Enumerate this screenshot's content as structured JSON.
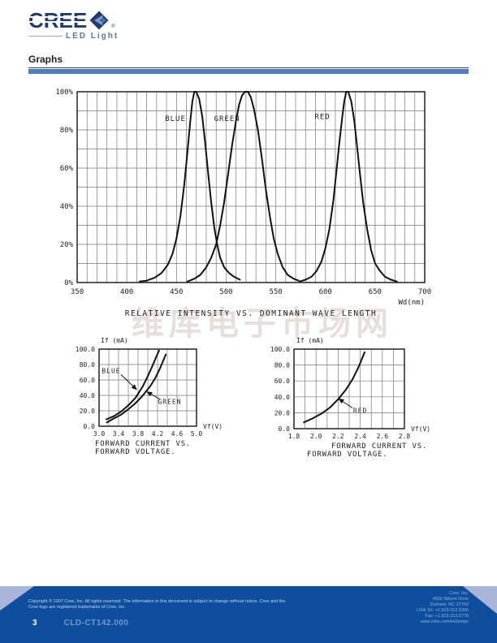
{
  "logo": {
    "brand": "CREE",
    "sub": "LED Light",
    "registered": "®"
  },
  "heading": {
    "title": "Graphs"
  },
  "watermark": {
    "text": "维库电子市场网"
  },
  "colors": {
    "footer_bg": "#0E4E9C",
    "footer_triangle": "#A8B4D8",
    "accent_bar": "#4C7DBE",
    "logo_navy": "#1E3A6E",
    "logo_steel": "#5577A8",
    "doc_number": "#6E9AD4",
    "address_text": "#8FB4E2",
    "copyright_text": "#C5D6EA",
    "curve": "#111111",
    "grid": "#777777"
  },
  "chart_data": [
    {
      "id": "spectral",
      "type": "line",
      "title_lines": [
        "RELATIVE INTENSITY VS. DOMINANT WAVE LENGTH"
      ],
      "xlabel": "Wd(nm)",
      "ylabel": "",
      "xlim": [
        350,
        700
      ],
      "ylim": [
        0,
        100
      ],
      "xgrid": 10,
      "ygrid": 10,
      "grid": true,
      "legend": "inline-labels",
      "xticks": {
        "values": [
          350,
          400,
          450,
          500,
          550,
          600,
          650,
          700
        ],
        "labels": [
          "350",
          "400",
          "450",
          "500",
          "550",
          "600",
          "650",
          "700"
        ]
      },
      "yticks": {
        "values": [
          0,
          20,
          40,
          60,
          80,
          100
        ],
        "labels": [
          "0%",
          "20%",
          "40%",
          "60%",
          "80%",
          "100%"
        ]
      },
      "series": [
        {
          "name": "BLUE",
          "label": {
            "text": "BLUE",
            "x": 449,
            "y": 86
          },
          "points": [
            [
              413,
              0.5
            ],
            [
              420,
              1
            ],
            [
              428,
              2.5
            ],
            [
              435,
              5
            ],
            [
              441,
              9
            ],
            [
              446,
              15
            ],
            [
              450,
              23
            ],
            [
              454,
              35
            ],
            [
              458,
              52
            ],
            [
              461,
              68
            ],
            [
              464,
              85
            ],
            [
              466,
              95
            ],
            [
              468,
              100
            ],
            [
              470,
              100
            ],
            [
              473,
              96
            ],
            [
              476,
              87
            ],
            [
              479,
              73
            ],
            [
              482,
              57
            ],
            [
              485,
              42
            ],
            [
              488,
              29
            ],
            [
              491,
              20
            ],
            [
              494,
              13
            ],
            [
              498,
              8
            ],
            [
              503,
              5
            ],
            [
              508,
              3
            ],
            [
              514,
              1.5
            ]
          ]
        },
        {
          "name": "GREEN",
          "label": {
            "text": "GREEN",
            "x": 501,
            "y": 86
          },
          "points": [
            [
              461,
              0.5
            ],
            [
              468,
              2
            ],
            [
              474,
              4
            ],
            [
              480,
              8
            ],
            [
              485,
              13
            ],
            [
              490,
              20
            ],
            [
              494,
              30
            ],
            [
              498,
              42
            ],
            [
              502,
              57
            ],
            [
              506,
              72
            ],
            [
              510,
              85
            ],
            [
              513,
              93
            ],
            [
              516,
              98
            ],
            [
              519,
              100
            ],
            [
              522,
              100
            ],
            [
              525,
              97
            ],
            [
              528,
              91
            ],
            [
              532,
              80
            ],
            [
              536,
              65
            ],
            [
              540,
              49
            ],
            [
              544,
              35
            ],
            [
              548,
              23
            ],
            [
              552,
              15
            ],
            [
              557,
              8
            ],
            [
              562,
              4
            ],
            [
              568,
              2
            ],
            [
              573,
              1
            ]
          ]
        },
        {
          "name": "RED",
          "label": {
            "text": "RED",
            "x": 597,
            "y": 87
          },
          "points": [
            [
              574,
              0.5
            ],
            [
              580,
              1.5
            ],
            [
              586,
              3
            ],
            [
              591,
              6
            ],
            [
              596,
              11
            ],
            [
              600,
              18
            ],
            [
              604,
              28
            ],
            [
              608,
              43
            ],
            [
              611,
              58
            ],
            [
              614,
              73
            ],
            [
              617,
              87
            ],
            [
              619,
              95
            ],
            [
              621,
              100
            ],
            [
              623,
              100
            ],
            [
              626,
              95
            ],
            [
              629,
              85
            ],
            [
              632,
              71
            ],
            [
              635,
              56
            ],
            [
              638,
              42
            ],
            [
              642,
              28
            ],
            [
              646,
              17
            ],
            [
              650,
              10
            ],
            [
              655,
              6
            ],
            [
              660,
              3
            ],
            [
              666,
              1.5
            ],
            [
              672,
              0.5
            ]
          ]
        }
      ]
    },
    {
      "id": "iv_blue_green",
      "type": "line",
      "title_lines": [
        "FORWARD CURRENT VS.",
        "FORWARD VOLTAGE."
      ],
      "xlabel": "Vf(V)",
      "ylabel": "If (mA)",
      "xlim": [
        3.0,
        5.0
      ],
      "ylim": [
        0,
        100
      ],
      "xgrid": 0.2,
      "ygrid": 20,
      "grid": true,
      "legend": "inline-labels",
      "xticks": {
        "values": [
          3.0,
          3.4,
          3.8,
          4.2,
          4.6,
          5.0
        ],
        "labels": [
          "3.0",
          "3.4",
          "3.8",
          "4.2",
          "4.6",
          "5.0"
        ]
      },
      "yticks": {
        "values": [
          0,
          20,
          40,
          60,
          80,
          100
        ],
        "labels": [
          "0.0",
          "20.0",
          "40.0",
          "60.0",
          "80.0",
          "100.0"
        ]
      },
      "series": [
        {
          "name": "BLUE",
          "label": {
            "text": "BLUE",
            "x": 3.25,
            "y": 72
          },
          "arrow": {
            "from": [
              3.45,
              67
            ],
            "to": [
              3.78,
              47
            ]
          },
          "points": [
            [
              3.15,
              9
            ],
            [
              3.3,
              13
            ],
            [
              3.45,
              19
            ],
            [
              3.6,
              27
            ],
            [
              3.75,
              37
            ],
            [
              3.9,
              52
            ],
            [
              4.0,
              65
            ],
            [
              4.1,
              79
            ],
            [
              4.18,
              91
            ],
            [
              4.23,
              98
            ]
          ]
        },
        {
          "name": "GREEN",
          "label": {
            "text": "GREEN",
            "x": 4.45,
            "y": 32
          },
          "arrow": {
            "from": [
              4.25,
              35
            ],
            "to": [
              3.97,
              45
            ]
          },
          "points": [
            [
              3.16,
              5
            ],
            [
              3.3,
              10
            ],
            [
              3.45,
              15
            ],
            [
              3.6,
              22
            ],
            [
              3.75,
              30
            ],
            [
              3.9,
              40
            ],
            [
              4.05,
              52
            ],
            [
              4.15,
              62
            ],
            [
              4.25,
              75
            ],
            [
              4.33,
              87
            ],
            [
              4.37,
              93
            ]
          ]
        }
      ]
    },
    {
      "id": "iv_red",
      "type": "line",
      "title_lines": [
        "FORWARD CURRENT VS.",
        "FORWARD VOLTAGE."
      ],
      "xlabel": "Vf(V)",
      "ylabel": "If (mA)",
      "xlim": [
        1.8,
        2.8
      ],
      "ylim": [
        0,
        100
      ],
      "xgrid": 0.1,
      "ygrid": 20,
      "grid": true,
      "legend": "inline-labels",
      "xticks": {
        "values": [
          1.8,
          2.0,
          2.2,
          2.4,
          2.6,
          2.8
        ],
        "labels": [
          "1.8",
          "2.0",
          "2.2",
          "2.4",
          "2.6",
          "2.8"
        ]
      },
      "yticks": {
        "values": [
          0,
          20,
          40,
          60,
          80,
          100
        ],
        "labels": [
          "0.0",
          "20.0",
          "40.0",
          "60.0",
          "80.0",
          "100.0"
        ]
      },
      "series": [
        {
          "name": "RED",
          "label": {
            "text": "RED",
            "x": 2.4,
            "y": 23
          },
          "arrow": {
            "from": [
              2.33,
              26
            ],
            "to": [
              2.2,
              38
            ]
          },
          "points": [
            [
              1.89,
              8
            ],
            [
              1.97,
              13
            ],
            [
              2.05,
              19
            ],
            [
              2.13,
              27
            ],
            [
              2.2,
              37
            ],
            [
              2.27,
              49
            ],
            [
              2.33,
              62
            ],
            [
              2.38,
              76
            ],
            [
              2.41,
              86
            ],
            [
              2.43,
              93
            ],
            [
              2.44,
              96
            ]
          ]
        }
      ]
    }
  ],
  "footer": {
    "copyright_line1": "Copyright © 2007 Cree, Inc. All rights reserved. The information in this document is subject to change without notice. Cree and the",
    "copyright_line2": "Cree logo  are registered trademarks of Cree, Inc.",
    "page_number": "3",
    "doc_number": "CLD-CT142.000",
    "address": [
      "Cree, Inc.",
      "4600 Silicon Drive",
      "Durham, NC 27703",
      "USA Tel: +1.919.313.5300",
      "Fax: +1.919.313.5778",
      "www.cree.com/ledlamps"
    ]
  }
}
